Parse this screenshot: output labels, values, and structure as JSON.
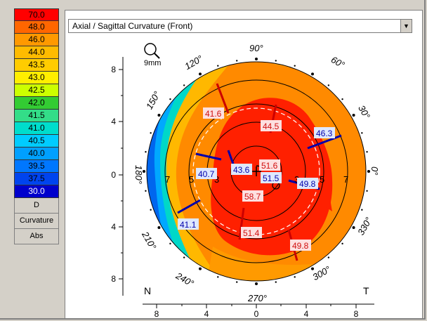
{
  "scale": {
    "values": [
      "70.0",
      "48.0",
      "46.0",
      "44.0",
      "43.5",
      "43.0",
      "42.5",
      "42.0",
      "41.5",
      "41.0",
      "40.5",
      "40.0",
      "39.5",
      "37.5",
      "30.0"
    ],
    "colors": [
      "#ff0000",
      "#ff6600",
      "#ff9900",
      "#ffbb00",
      "#ffcc00",
      "#ffee00",
      "#ccff00",
      "#33cc33",
      "#33dd88",
      "#00ddcc",
      "#00ccff",
      "#00a0ff",
      "#0077ff",
      "#0044ee",
      "#0000cc"
    ],
    "buttons": [
      "D",
      "Curvature",
      "Abs"
    ]
  },
  "map": {
    "selected_map": "Axial / Sagittal Curvature (Front)",
    "zoom_label": "9mm",
    "nasal_label": "N",
    "temporal_label": "T",
    "y_ticks": [
      "8",
      "4",
      "0",
      "4",
      "8"
    ],
    "x_ticks": [
      "8",
      "4",
      "0",
      "4",
      "8"
    ],
    "angles": {
      "a90": "90°",
      "a60": "60°",
      "a30": "30°",
      "a0": "0°",
      "a330": "330°",
      "a300": "300°",
      "a270": "270°",
      "a240": "240°",
      "a210": "210°",
      "a180": "180°",
      "a150": "150°",
      "a120": "120°"
    },
    "ring_labels": {
      "l3": "3",
      "l5": "5",
      "l7": "7",
      "r3": "3",
      "r5": "5",
      "r7": "7"
    },
    "readings": {
      "r1": "41.6",
      "r2": "44.5",
      "r3": "46.3",
      "r4": "40.7",
      "r5": "43.6",
      "r6": "51.6",
      "r7": "51.5",
      "r8": "49.8",
      "r9": "58.7",
      "r10": "41.1",
      "r11": "51.4",
      "r12": "49.8"
    }
  }
}
